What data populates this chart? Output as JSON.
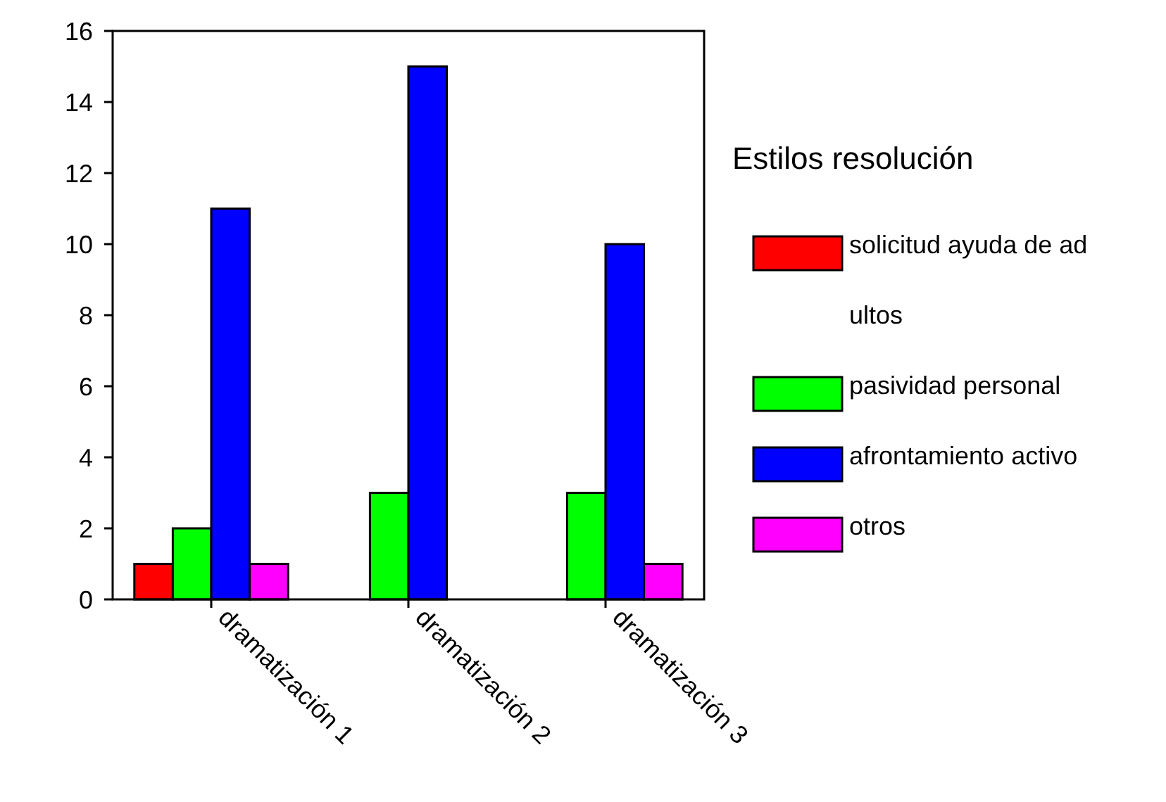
{
  "chart_data": {
    "type": "bar",
    "categories": [
      "dramatización 1",
      "dramatización 2",
      "dramatización 3"
    ],
    "legend_title": "Estilos resolución",
    "legend": "right",
    "grid": false,
    "ylim": [
      0,
      16
    ],
    "yticks": [
      0,
      2,
      4,
      6,
      8,
      10,
      12,
      14,
      16
    ],
    "series": [
      {
        "name": "solicitud ayuda de adultos",
        "color": "#ff0000",
        "values": [
          1,
          null,
          null
        ]
      },
      {
        "name": "pasividad personal",
        "color": "#00ff00",
        "values": [
          2,
          3,
          3
        ]
      },
      {
        "name": "afrontamiento activo",
        "color": "#0000ff",
        "values": [
          11,
          15,
          10
        ]
      },
      {
        "name": "otros",
        "color": "#ff00ff",
        "values": [
          1,
          null,
          1
        ]
      }
    ]
  }
}
